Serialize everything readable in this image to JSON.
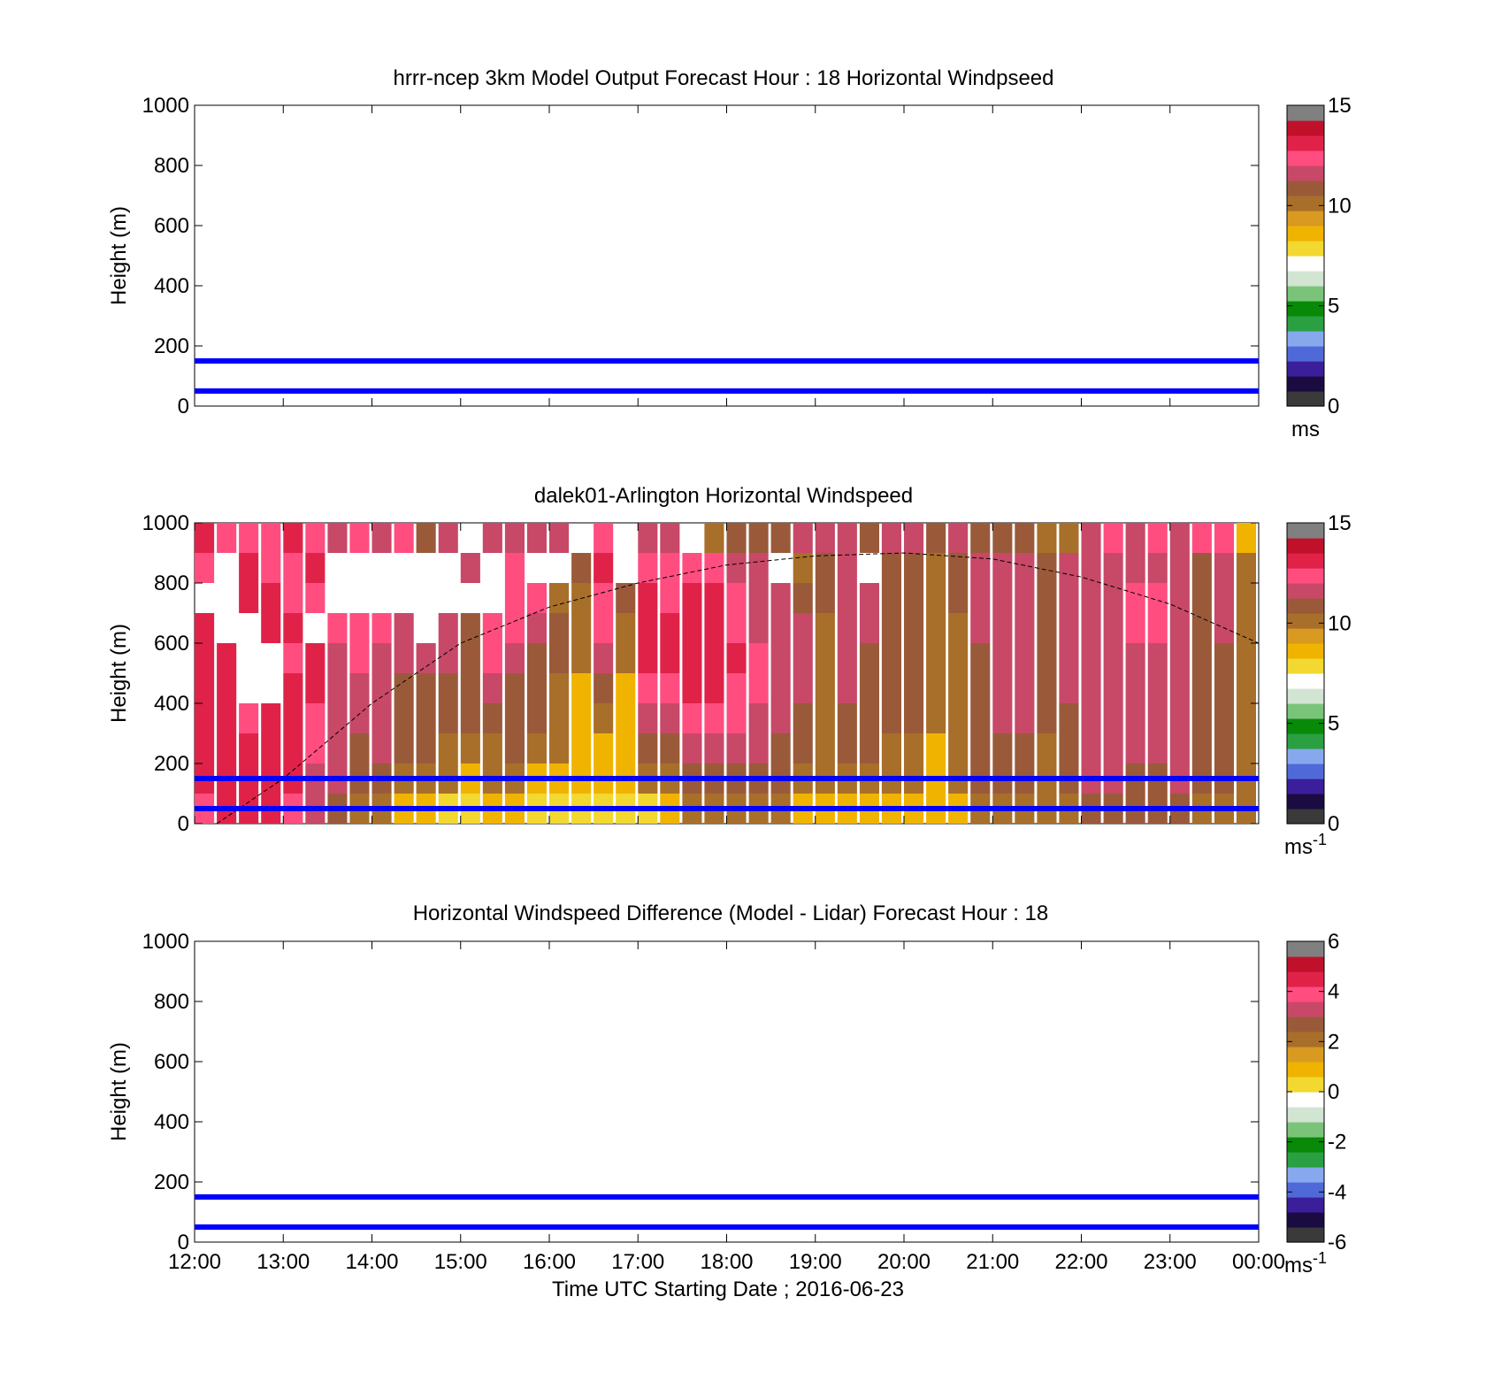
{
  "figure": {
    "xlabel": "Time UTC  Starting Date ; 2016-06-23",
    "x_ticks": [
      "12:00",
      "13:00",
      "14:00",
      "15:00",
      "16:00",
      "17:00",
      "18:00",
      "19:00",
      "20:00",
      "21:00",
      "22:00",
      "23:00",
      "00:00"
    ]
  },
  "colors": {
    "ref_line": "#0000ff",
    "colormap": [
      "#3a3a3a",
      "#1a0b40",
      "#3b1e9a",
      "#4f6ad8",
      "#88a8ee",
      "#2aa042",
      "#088a08",
      "#7ac47a",
      "#d2e4d2",
      "#ffffff",
      "#f2d830",
      "#f0b400",
      "#d89a20",
      "#a86f2a",
      "#9a5a3a",
      "#c84868",
      "#ff4d80",
      "#e02248",
      "#c0102a",
      "#808080"
    ]
  },
  "chart_data": [
    {
      "type": "heatmap",
      "title": "hrrr-ncep 3km Model Output   Forecast Hour : 18 Horizontal Windpseed",
      "xlabel": "",
      "ylabel": "Height (m)",
      "xlim": [
        "12:00",
        "00:00"
      ],
      "ylim": [
        0,
        1000
      ],
      "y_ticks": [
        0,
        200,
        400,
        600,
        800,
        1000
      ],
      "colorbar": {
        "range": [
          0,
          15
        ],
        "ticks": [
          0,
          5,
          10,
          15
        ],
        "unit": "ms",
        "unit_superscript": ""
      },
      "cells": [],
      "reference_lines_m": [
        50,
        150
      ]
    },
    {
      "type": "heatmap",
      "title": "dalek01-Arlington  Horizontal Windspeed",
      "xlabel": "",
      "ylabel": "Height (m)",
      "xlim": [
        "12:00",
        "00:00"
      ],
      "ylim": [
        0,
        1000
      ],
      "y_ticks": [
        0,
        200,
        400,
        600,
        800,
        1000
      ],
      "colorbar": {
        "range": [
          0,
          15
        ],
        "ticks": [
          0,
          5,
          10,
          15
        ],
        "unit": "ms",
        "unit_superscript": "-1"
      },
      "column_profiles": {
        "description": "wind speed (m/s) by 15-minute time column; levels from 50 m to 950 m every 100 m",
        "levels_m": [
          50,
          150,
          250,
          350,
          450,
          550,
          650,
          750,
          850,
          950
        ],
        "columns": [
          {
            "time": "12:00",
            "ws": [
              13,
              14,
              14,
              14,
              14,
              14,
              14,
              null,
              13,
              14
            ]
          },
          {
            "time": "12:15",
            "ws": [
              14,
              14,
              14,
              14,
              14,
              14,
              null,
              null,
              null,
              13
            ]
          },
          {
            "time": "12:30",
            "ws": [
              14,
              14,
              14,
              13,
              null,
              null,
              null,
              14,
              14,
              13
            ]
          },
          {
            "time": "12:45",
            "ws": [
              14,
              14,
              14,
              14,
              null,
              null,
              14,
              14,
              13,
              13
            ]
          },
          {
            "time": "13:00",
            "ws": [
              13,
              14,
              14,
              14,
              14,
              13,
              14,
              13,
              13,
              14
            ]
          },
          {
            "time": "13:15",
            "ws": [
              12,
              12,
              13,
              13,
              14,
              14,
              null,
              13,
              14,
              13
            ]
          },
          {
            "time": "13:30",
            "ws": [
              11,
              12,
              12,
              12,
              12,
              12,
              13,
              null,
              null,
              12
            ]
          },
          {
            "time": "13:45",
            "ws": [
              10,
              11,
              11,
              12,
              12,
              13,
              13,
              null,
              null,
              13
            ]
          },
          {
            "time": "14:00",
            "ws": [
              10,
              11,
              12,
              12,
              12,
              12,
              13,
              null,
              null,
              12
            ]
          },
          {
            "time": "14:15",
            "ws": [
              9,
              10,
              11,
              11,
              11,
              12,
              12,
              null,
              null,
              13
            ]
          },
          {
            "time": "14:30",
            "ws": [
              9,
              10,
              11,
              11,
              11,
              12,
              null,
              null,
              null,
              11
            ]
          },
          {
            "time": "14:45",
            "ws": [
              8,
              10,
              10,
              11,
              11,
              12,
              12,
              null,
              null,
              12
            ]
          },
          {
            "time": "15:00",
            "ws": [
              8,
              9,
              10,
              11,
              11,
              11,
              11,
              null,
              12,
              null
            ]
          },
          {
            "time": "15:15",
            "ws": [
              9,
              10,
              10,
              11,
              12,
              13,
              13,
              null,
              null,
              12
            ]
          },
          {
            "time": "15:30",
            "ws": [
              9,
              10,
              11,
              11,
              11,
              12,
              13,
              13,
              13,
              12
            ]
          },
          {
            "time": "15:45",
            "ws": [
              8,
              9,
              10,
              11,
              11,
              11,
              12,
              13,
              null,
              12
            ]
          },
          {
            "time": "16:00",
            "ws": [
              8,
              9,
              10,
              10,
              10,
              11,
              11,
              10,
              null,
              12
            ]
          },
          {
            "time": "16:15",
            "ws": [
              8,
              9,
              9,
              9,
              9,
              10,
              10,
              10,
              11,
              null
            ]
          },
          {
            "time": "16:30",
            "ws": [
              8,
              9,
              9,
              10,
              11,
              12,
              13,
              13,
              14,
              13
            ]
          },
          {
            "time": "16:45",
            "ws": [
              8,
              9,
              9,
              9,
              9,
              10,
              10,
              11,
              null,
              null
            ]
          },
          {
            "time": "17:00",
            "ws": [
              8,
              10,
              11,
              12,
              13,
              14,
              14,
              14,
              13,
              12
            ]
          },
          {
            "time": "17:15",
            "ws": [
              9,
              10,
              11,
              12,
              13,
              14,
              14,
              13,
              13,
              12
            ]
          },
          {
            "time": "17:30",
            "ws": [
              10,
              11,
              12,
              13,
              14,
              14,
              14,
              14,
              13,
              null
            ]
          },
          {
            "time": "17:45",
            "ws": [
              10,
              11,
              12,
              13,
              14,
              14,
              14,
              14,
              13,
              10
            ]
          },
          {
            "time": "18:00",
            "ws": [
              10,
              11,
              12,
              13,
              13,
              14,
              13,
              13,
              12,
              11
            ]
          },
          {
            "time": "18:15",
            "ws": [
              10,
              11,
              12,
              12,
              13,
              13,
              12,
              12,
              12,
              11
            ]
          },
          {
            "time": "18:30",
            "ws": [
              10,
              11,
              11,
              12,
              12,
              12,
              12,
              12,
              null,
              11
            ]
          },
          {
            "time": "18:45",
            "ws": [
              9,
              10,
              11,
              11,
              12,
              12,
              12,
              11,
              10,
              12
            ]
          },
          {
            "time": "19:00",
            "ws": [
              9,
              10,
              10,
              10,
              10,
              10,
              10,
              11,
              11,
              12
            ]
          },
          {
            "time": "19:15",
            "ws": [
              9,
              10,
              11,
              11,
              12,
              12,
              12,
              12,
              12,
              12
            ]
          },
          {
            "time": "19:30",
            "ws": [
              9,
              10,
              11,
              11,
              11,
              11,
              12,
              12,
              null,
              11
            ]
          },
          {
            "time": "19:45",
            "ws": [
              9,
              10,
              10,
              11,
              11,
              11,
              11,
              11,
              11,
              12
            ]
          },
          {
            "time": "20:00",
            "ws": [
              9,
              10,
              10,
              11,
              11,
              11,
              11,
              11,
              11,
              12
            ]
          },
          {
            "time": "20:15",
            "ws": [
              9,
              9,
              9,
              10,
              10,
              10,
              10,
              10,
              10,
              11
            ]
          },
          {
            "time": "20:30",
            "ws": [
              9,
              10,
              10,
              10,
              10,
              10,
              10,
              11,
              11,
              12
            ]
          },
          {
            "time": "20:45",
            "ws": [
              10,
              11,
              11,
              11,
              11,
              11,
              12,
              12,
              12,
              11
            ]
          },
          {
            "time": "21:00",
            "ws": [
              10,
              11,
              11,
              12,
              12,
              12,
              12,
              12,
              12,
              11
            ]
          },
          {
            "time": "21:15",
            "ws": [
              10,
              11,
              11,
              12,
              12,
              12,
              12,
              12,
              12,
              11
            ]
          },
          {
            "time": "21:30",
            "ws": [
              10,
              10,
              10,
              11,
              11,
              11,
              11,
              11,
              11,
              10
            ]
          },
          {
            "time": "21:45",
            "ws": [
              10,
              11,
              11,
              11,
              12,
              12,
              12,
              12,
              12,
              10
            ]
          },
          {
            "time": "22:00",
            "ws": [
              11,
              12,
              12,
              12,
              12,
              12,
              12,
              12,
              12,
              12
            ]
          },
          {
            "time": "22:15",
            "ws": [
              11,
              12,
              12,
              12,
              12,
              12,
              12,
              12,
              12,
              13
            ]
          },
          {
            "time": "22:30",
            "ws": [
              11,
              11,
              12,
              12,
              12,
              12,
              13,
              13,
              12,
              12
            ]
          },
          {
            "time": "22:45",
            "ws": [
              11,
              11,
              12,
              12,
              12,
              12,
              13,
              13,
              12,
              13
            ]
          },
          {
            "time": "23:00",
            "ws": [
              11,
              12,
              12,
              12,
              12,
              12,
              12,
              12,
              12,
              12
            ]
          },
          {
            "time": "23:15",
            "ws": [
              10,
              11,
              11,
              11,
              11,
              11,
              11,
              11,
              11,
              13
            ]
          },
          {
            "time": "23:30",
            "ws": [
              10,
              11,
              11,
              11,
              11,
              11,
              12,
              12,
              12,
              13
            ]
          },
          {
            "time": "23:45",
            "ws": [
              10,
              10,
              10,
              10,
              10,
              10,
              10,
              10,
              10,
              9
            ]
          }
        ]
      },
      "boundary_layer_curve": {
        "style": "dashed black",
        "points": [
          [
            "12:15",
            0
          ],
          [
            "13:00",
            150
          ],
          [
            "14:00",
            400
          ],
          [
            "15:00",
            600
          ],
          [
            "16:00",
            720
          ],
          [
            "17:00",
            800
          ],
          [
            "18:00",
            860
          ],
          [
            "19:00",
            890
          ],
          [
            "20:00",
            900
          ],
          [
            "21:00",
            880
          ],
          [
            "22:00",
            820
          ],
          [
            "23:00",
            730
          ],
          [
            "00:00",
            600
          ]
        ]
      },
      "reference_lines_m": [
        50,
        150
      ]
    },
    {
      "type": "heatmap",
      "title": "Horizontal Windspeed Difference (Model - Lidar) Forecast Hour : 18",
      "xlabel": "Time UTC  Starting Date ; 2016-06-23",
      "ylabel": "Height (m)",
      "xlim": [
        "12:00",
        "00:00"
      ],
      "ylim": [
        0,
        1000
      ],
      "y_ticks": [
        0,
        200,
        400,
        600,
        800,
        1000
      ],
      "colorbar": {
        "range": [
          -6,
          6
        ],
        "ticks": [
          -6,
          -4,
          -2,
          0,
          2,
          4,
          6
        ],
        "unit": "ms",
        "unit_superscript": "-1"
      },
      "cells": [],
      "reference_lines_m": [
        50,
        150
      ]
    }
  ]
}
